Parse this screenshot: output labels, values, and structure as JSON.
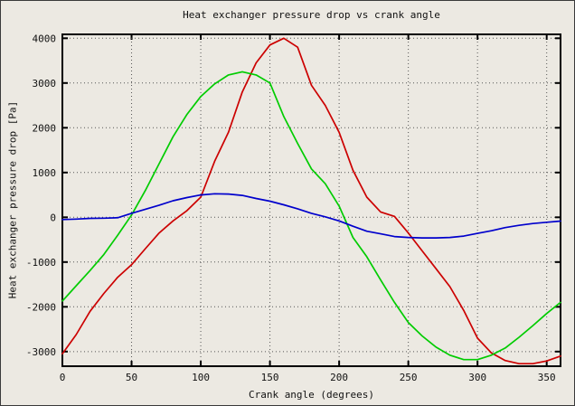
{
  "colors": {
    "background": "#ece9e2",
    "frame": "#000000",
    "grid": "#555555",
    "series_red": "#cc0000",
    "series_green": "#00cc00",
    "series_blue": "#0000cc"
  },
  "chart_data": {
    "type": "line",
    "title": "Heat exchanger pressure drop vs crank angle",
    "xlabel": "Crank angle (degrees)",
    "ylabel": "Heat exchanger pressure drop [Pa]",
    "xlim": [
      0,
      360
    ],
    "ylim": [
      -3327,
      4087
    ],
    "xticks": [
      0,
      50,
      100,
      150,
      200,
      250,
      300,
      350
    ],
    "yticks": [
      4000,
      3000,
      2000,
      1000,
      0,
      -1000,
      -2000,
      -3000
    ],
    "grid": true,
    "legend": "none",
    "x": [
      0,
      10,
      20,
      30,
      40,
      50,
      60,
      70,
      80,
      90,
      100,
      110,
      120,
      130,
      140,
      150,
      160,
      170,
      180,
      190,
      200,
      210,
      220,
      230,
      240,
      250,
      260,
      270,
      280,
      290,
      300,
      310,
      320,
      330,
      340,
      350,
      360
    ],
    "series": [
      {
        "name": "red",
        "color": "#cc0000",
        "values": [
          -3050,
          -2620,
          -2100,
          -1700,
          -1340,
          -1060,
          -700,
          -350,
          -80,
          150,
          450,
          1250,
          1900,
          2800,
          3450,
          3850,
          4000,
          3800,
          2950,
          2500,
          1900,
          1050,
          450,
          120,
          20,
          -350,
          -750,
          -1150,
          -1550,
          -2080,
          -2700,
          -3030,
          -3200,
          -3270,
          -3270,
          -3210,
          -3100
        ]
      },
      {
        "name": "green",
        "color": "#00cc00",
        "values": [
          -1870,
          -1530,
          -1190,
          -830,
          -400,
          50,
          600,
          1200,
          1800,
          2300,
          2700,
          2980,
          3180,
          3250,
          3180,
          3000,
          2250,
          1650,
          1080,
          750,
          250,
          -450,
          -880,
          -1400,
          -1900,
          -2350,
          -2650,
          -2900,
          -3080,
          -3180,
          -3180,
          -3080,
          -2920,
          -2680,
          -2420,
          -2150,
          -1900
        ]
      },
      {
        "name": "blue",
        "color": "#0000cc",
        "values": [
          -50,
          -40,
          -25,
          -20,
          -10,
          90,
          180,
          270,
          370,
          440,
          500,
          525,
          520,
          490,
          420,
          360,
          280,
          190,
          90,
          10,
          -80,
          -200,
          -310,
          -370,
          -430,
          -450,
          -460,
          -460,
          -450,
          -420,
          -360,
          -300,
          -230,
          -180,
          -140,
          -110,
          -85
        ]
      }
    ]
  }
}
